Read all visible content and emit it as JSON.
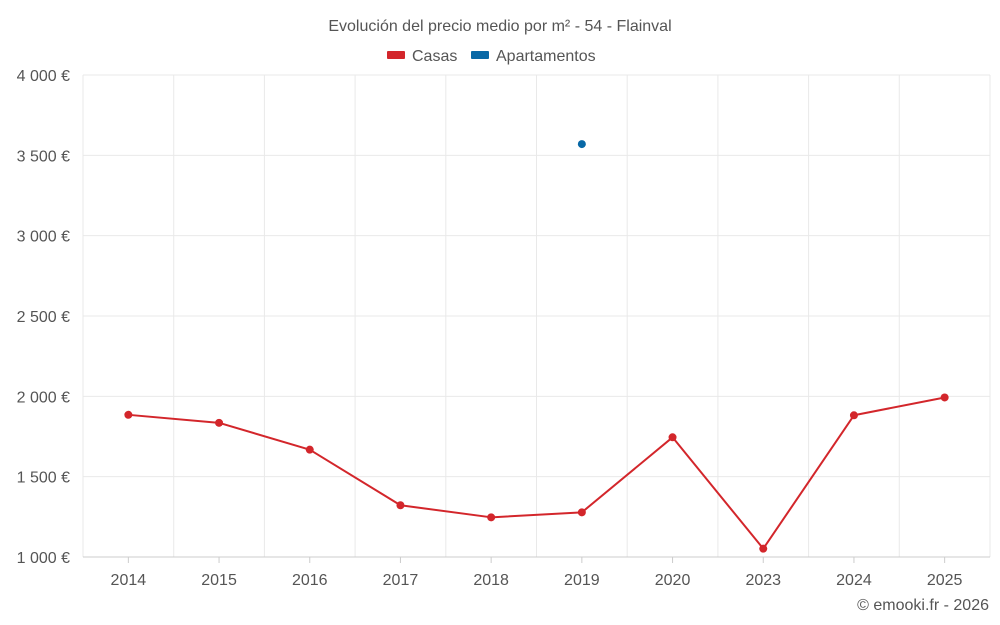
{
  "chart_data": {
    "type": "line",
    "title": "Evolución del precio medio por m² - 54 - Flainval",
    "categories": [
      "2014",
      "2015",
      "2016",
      "2017",
      "2018",
      "2019",
      "2020",
      "2023",
      "2024",
      "2025"
    ],
    "y_ticks": [
      "1 000 €",
      "1 500 €",
      "2 000 €",
      "2 500 €",
      "3 000 €",
      "3 500 €",
      "4 000 €"
    ],
    "ylim": [
      1000,
      4000
    ],
    "y_step": 500,
    "grid": true,
    "legend_position": "top-center",
    "series": [
      {
        "name": "Casas",
        "color": "#d3262b",
        "values": [
          1885,
          1835,
          1668,
          1322,
          1247,
          1278,
          1745,
          1052,
          1882,
          1993
        ]
      },
      {
        "name": "Apartamentos",
        "color": "#0868a6",
        "values": [
          null,
          null,
          null,
          null,
          null,
          3570,
          null,
          null,
          null,
          null
        ]
      }
    ]
  },
  "credit": "© emooki.fr - 2026"
}
